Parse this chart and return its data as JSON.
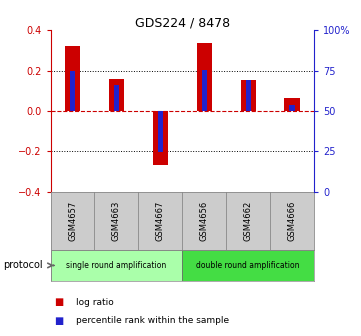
{
  "title": "GDS224 / 8478",
  "samples": [
    "GSM4657",
    "GSM4663",
    "GSM4667",
    "GSM4656",
    "GSM4662",
    "GSM4666"
  ],
  "log_ratios": [
    0.32,
    0.16,
    -0.27,
    0.335,
    0.155,
    0.065
  ],
  "percentile_ranks": [
    0.2,
    0.13,
    -0.205,
    0.205,
    0.155,
    0.03
  ],
  "ylim": [
    -0.4,
    0.4
  ],
  "right_ylim": [
    0,
    100
  ],
  "right_yticks": [
    0,
    25,
    50,
    75,
    100
  ],
  "right_yticklabels": [
    "0",
    "25",
    "50",
    "75",
    "100%"
  ],
  "left_yticks": [
    -0.4,
    -0.2,
    0.0,
    0.2,
    0.4
  ],
  "dotted_lines": [
    -0.2,
    0.2
  ],
  "bar_color": "#cc0000",
  "blue_color": "#2222cc",
  "protocol_groups": [
    {
      "label": "single round amplification",
      "start": 0,
      "end": 3,
      "color": "#aaffaa"
    },
    {
      "label": "double round amplification",
      "start": 3,
      "end": 6,
      "color": "#44dd44"
    }
  ],
  "protocol_label": "protocol",
  "legend_items": [
    {
      "label": "log ratio",
      "color": "#cc0000"
    },
    {
      "label": "percentile rank within the sample",
      "color": "#2222cc"
    }
  ],
  "left_tick_color": "#cc0000",
  "right_tick_color": "#2222cc",
  "bar_width": 0.35,
  "blue_bar_width": 0.12,
  "sample_bg": "#cccccc",
  "title_fontsize": 9
}
